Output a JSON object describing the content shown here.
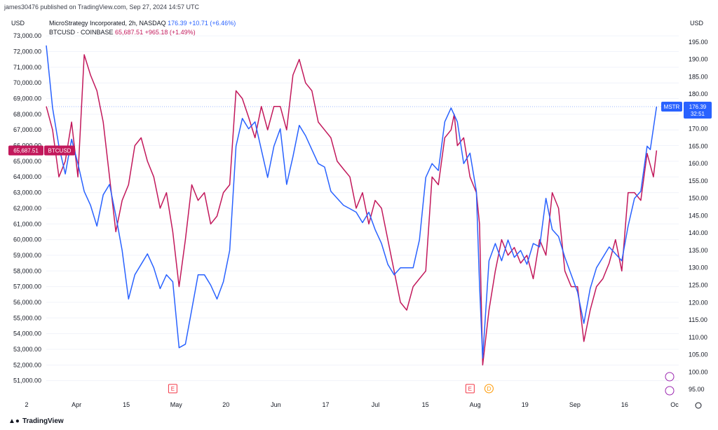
{
  "header": {
    "published": "james30476 published on TradingView.com, Sep 27, 2024 14:57 UTC",
    "currency_left": "USD",
    "currency_right": "USD"
  },
  "legend": {
    "mstr": {
      "name": "MicroStrategy Incorporated, 2h, NASDAQ",
      "value": "176.39",
      "change": "+10.71 (+6.46%)"
    },
    "btc": {
      "name": "BTCUSD · COINBASE",
      "value": "65,687.51",
      "change": "+965.18 (+1.49%)"
    }
  },
  "footer": {
    "brand": "TradingView",
    "logo": "tradingview-logo"
  },
  "colors": {
    "mstr": "#2962ff",
    "btc": "#c2185b",
    "grid": "#f0f3fa",
    "axis_text": "#131722"
  },
  "chart_data": {
    "type": "line",
    "x_ticks": [
      "2",
      "Apr",
      "15",
      "May",
      "20",
      "Jun",
      "17",
      "Jul",
      "15",
      "Aug",
      "19",
      "Sep",
      "16",
      "Oc"
    ],
    "y_left": {
      "label": "USD",
      "range": [
        50000,
        73500
      ],
      "ticks": [
        "51,000.00",
        "52,000.00",
        "53,000.00",
        "54,000.00",
        "55,000.00",
        "56,000.00",
        "57,000.00",
        "58,000.00",
        "59,000.00",
        "60,000.00",
        "61,000.00",
        "62,000.00",
        "63,000.00",
        "64,000.00",
        "65,000.00",
        "66,000.00",
        "67,000.00",
        "68,000.00",
        "69,000.00",
        "70,000.00",
        "71,000.00",
        "72,000.00",
        "73,000.00"
      ]
    },
    "y_right": {
      "label": "USD",
      "range": [
        93,
        199
      ],
      "ticks": [
        "95.00",
        "100.00",
        "105.00",
        "110.00",
        "115.00",
        "120.00",
        "125.00",
        "130.00",
        "135.00",
        "140.00",
        "145.00",
        "150.00",
        "155.00",
        "160.00",
        "165.00",
        "170.00",
        "175.00",
        "180.00",
        "185.00",
        "190.00",
        "195.00"
      ]
    },
    "series": [
      {
        "name": "BTCUSD",
        "axis": "left",
        "color": "#c2185b",
        "last_label": "65,687.51",
        "badge_text": "BTCUSD",
        "points": [
          [
            0,
            68500
          ],
          [
            0.01,
            67000
          ],
          [
            0.02,
            64000
          ],
          [
            0.03,
            65000
          ],
          [
            0.04,
            67500
          ],
          [
            0.05,
            64000
          ],
          [
            0.06,
            71800
          ],
          [
            0.07,
            70500
          ],
          [
            0.08,
            69500
          ],
          [
            0.09,
            67500
          ],
          [
            0.1,
            64000
          ],
          [
            0.11,
            60500
          ],
          [
            0.12,
            62500
          ],
          [
            0.13,
            63500
          ],
          [
            0.14,
            66000
          ],
          [
            0.15,
            66500
          ],
          [
            0.16,
            65000
          ],
          [
            0.17,
            64000
          ],
          [
            0.18,
            62000
          ],
          [
            0.19,
            63000
          ],
          [
            0.2,
            60500
          ],
          [
            0.21,
            57000
          ],
          [
            0.22,
            60000
          ],
          [
            0.23,
            63500
          ],
          [
            0.24,
            62500
          ],
          [
            0.25,
            63000
          ],
          [
            0.26,
            61000
          ],
          [
            0.27,
            61500
          ],
          [
            0.28,
            63000
          ],
          [
            0.29,
            63500
          ],
          [
            0.3,
            69500
          ],
          [
            0.31,
            69000
          ],
          [
            0.32,
            67800
          ],
          [
            0.33,
            66500
          ],
          [
            0.34,
            68500
          ],
          [
            0.35,
            67000
          ],
          [
            0.36,
            68500
          ],
          [
            0.37,
            68500
          ],
          [
            0.38,
            67000
          ],
          [
            0.39,
            70500
          ],
          [
            0.4,
            71500
          ],
          [
            0.41,
            70000
          ],
          [
            0.42,
            69500
          ],
          [
            0.43,
            67500
          ],
          [
            0.44,
            67000
          ],
          [
            0.45,
            66500
          ],
          [
            0.46,
            65000
          ],
          [
            0.47,
            64500
          ],
          [
            0.48,
            64000
          ],
          [
            0.49,
            62000
          ],
          [
            0.5,
            63000
          ],
          [
            0.51,
            61000
          ],
          [
            0.52,
            62500
          ],
          [
            0.53,
            62000
          ],
          [
            0.54,
            60000
          ],
          [
            0.55,
            58000
          ],
          [
            0.56,
            56000
          ],
          [
            0.57,
            55500
          ],
          [
            0.58,
            57000
          ],
          [
            0.59,
            57500
          ],
          [
            0.6,
            58000
          ],
          [
            0.61,
            64000
          ],
          [
            0.62,
            63500
          ],
          [
            0.63,
            66500
          ],
          [
            0.64,
            67000
          ],
          [
            0.645,
            68000
          ],
          [
            0.65,
            66000
          ],
          [
            0.66,
            66500
          ],
          [
            0.67,
            64000
          ],
          [
            0.68,
            63000
          ],
          [
            0.685,
            61000
          ],
          [
            0.69,
            52000
          ],
          [
            0.7,
            55500
          ],
          [
            0.71,
            58000
          ],
          [
            0.72,
            60000
          ],
          [
            0.73,
            59000
          ],
          [
            0.74,
            59500
          ],
          [
            0.75,
            58500
          ],
          [
            0.76,
            59000
          ],
          [
            0.77,
            57500
          ],
          [
            0.78,
            60000
          ],
          [
            0.79,
            59000
          ],
          [
            0.8,
            63000
          ],
          [
            0.81,
            62000
          ],
          [
            0.82,
            58000
          ],
          [
            0.83,
            57000
          ],
          [
            0.84,
            57000
          ],
          [
            0.85,
            53500
          ],
          [
            0.86,
            55500
          ],
          [
            0.87,
            57000
          ],
          [
            0.88,
            57500
          ],
          [
            0.89,
            58500
          ],
          [
            0.9,
            60000
          ],
          [
            0.91,
            58000
          ],
          [
            0.92,
            63000
          ],
          [
            0.93,
            63000
          ],
          [
            0.94,
            62500
          ],
          [
            0.95,
            65500
          ],
          [
            0.96,
            64000
          ],
          [
            0.965,
            65687.51
          ]
        ]
      },
      {
        "name": "MSTR",
        "axis": "right",
        "color": "#2962ff",
        "last_label": "176.39",
        "badge_text": "MSTR",
        "sub_label": "32:51",
        "points": [
          [
            0,
            194
          ],
          [
            0.01,
            176
          ],
          [
            0.02,
            165
          ],
          [
            0.03,
            157
          ],
          [
            0.04,
            167
          ],
          [
            0.05,
            160
          ],
          [
            0.06,
            152
          ],
          [
            0.07,
            148
          ],
          [
            0.08,
            142
          ],
          [
            0.09,
            151
          ],
          [
            0.1,
            154
          ],
          [
            0.11,
            145
          ],
          [
            0.12,
            135
          ],
          [
            0.13,
            121
          ],
          [
            0.14,
            128
          ],
          [
            0.15,
            131
          ],
          [
            0.16,
            134
          ],
          [
            0.17,
            130
          ],
          [
            0.18,
            124
          ],
          [
            0.19,
            128
          ],
          [
            0.2,
            126
          ],
          [
            0.21,
            107
          ],
          [
            0.22,
            108
          ],
          [
            0.23,
            118
          ],
          [
            0.24,
            128
          ],
          [
            0.25,
            128
          ],
          [
            0.26,
            125
          ],
          [
            0.27,
            121
          ],
          [
            0.28,
            126
          ],
          [
            0.29,
            135
          ],
          [
            0.3,
            165
          ],
          [
            0.31,
            173
          ],
          [
            0.32,
            170
          ],
          [
            0.33,
            172
          ],
          [
            0.34,
            164
          ],
          [
            0.35,
            156
          ],
          [
            0.36,
            165
          ],
          [
            0.37,
            170
          ],
          [
            0.38,
            154
          ],
          [
            0.39,
            162
          ],
          [
            0.4,
            171
          ],
          [
            0.41,
            168
          ],
          [
            0.42,
            164
          ],
          [
            0.43,
            160
          ],
          [
            0.44,
            159
          ],
          [
            0.45,
            152
          ],
          [
            0.46,
            150
          ],
          [
            0.47,
            148
          ],
          [
            0.48,
            147
          ],
          [
            0.49,
            146
          ],
          [
            0.5,
            143
          ],
          [
            0.51,
            146
          ],
          [
            0.52,
            141
          ],
          [
            0.53,
            137
          ],
          [
            0.54,
            131
          ],
          [
            0.55,
            128
          ],
          [
            0.56,
            130
          ],
          [
            0.57,
            130
          ],
          [
            0.58,
            130
          ],
          [
            0.59,
            138
          ],
          [
            0.6,
            156
          ],
          [
            0.61,
            160
          ],
          [
            0.62,
            158
          ],
          [
            0.63,
            172
          ],
          [
            0.64,
            176
          ],
          [
            0.65,
            172
          ],
          [
            0.66,
            160
          ],
          [
            0.67,
            163
          ],
          [
            0.68,
            152
          ],
          [
            0.685,
            125
          ],
          [
            0.69,
            104
          ],
          [
            0.7,
            132
          ],
          [
            0.71,
            137
          ],
          [
            0.72,
            132
          ],
          [
            0.73,
            138
          ],
          [
            0.74,
            133
          ],
          [
            0.75,
            135
          ],
          [
            0.76,
            131
          ],
          [
            0.77,
            137
          ],
          [
            0.78,
            136
          ],
          [
            0.79,
            150
          ],
          [
            0.8,
            141
          ],
          [
            0.81,
            139
          ],
          [
            0.82,
            133
          ],
          [
            0.83,
            128
          ],
          [
            0.84,
            123
          ],
          [
            0.85,
            114
          ],
          [
            0.86,
            124
          ],
          [
            0.87,
            130
          ],
          [
            0.88,
            133
          ],
          [
            0.89,
            136
          ],
          [
            0.9,
            134
          ],
          [
            0.91,
            132
          ],
          [
            0.92,
            142
          ],
          [
            0.93,
            150
          ],
          [
            0.94,
            152
          ],
          [
            0.95,
            165
          ],
          [
            0.955,
            164
          ],
          [
            0.965,
            176.39
          ]
        ]
      }
    ],
    "reference_line": {
      "series": "MSTR",
      "value": 176.39,
      "style": "dotted"
    },
    "event_markers": [
      {
        "label": "E",
        "x": 0.2,
        "color": "#f23645"
      },
      {
        "label": "E",
        "x": 0.67,
        "color": "#f23645"
      },
      {
        "label": "D",
        "x": 0.7,
        "color": "#ff9800"
      }
    ],
    "side_icons": [
      "add-icon",
      "edit-icon"
    ],
    "grid": true,
    "legend_position": "top-left"
  }
}
